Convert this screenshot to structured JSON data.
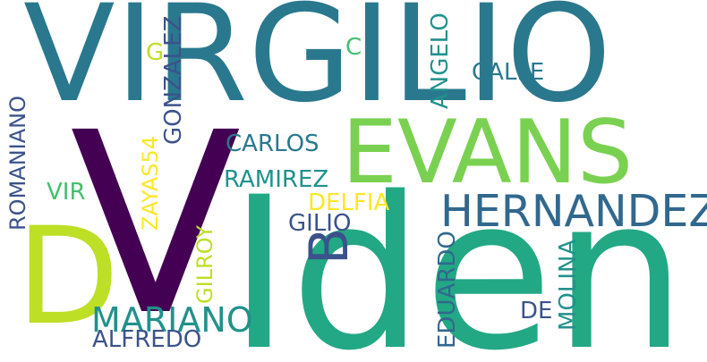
{
  "words": {
    "virgilio": "VIRGILIO",
    "v": "V",
    "iden": "Iden",
    "evans": "EVANS",
    "d": "D",
    "hernandez": "HERNANDEZ",
    "b": "B",
    "mariano": "MARIANO",
    "gonzalez": "GONZALEZ",
    "romaniano": "ROMANIANO",
    "zayas54": "ZAYAS54",
    "gilroy": "GILROY",
    "carlos": "CARLOS",
    "ramirez": "RAMIREZ",
    "delfia": "DELFIA",
    "gilio": "GILIO",
    "eduardo": "EDUARDO",
    "molina": "MOLINA",
    "de": "DE",
    "alfredo": "ALFREDO",
    "angelo": "ANGELO",
    "calle": "CALLE",
    "c": "C",
    "g": "G",
    "vir": "VIR"
  },
  "colors": {
    "dark_purple": "#440154",
    "indigo": "#3b528b",
    "slate_blue": "#31688e",
    "teal": "#2a788e",
    "teal_green": "#21918c",
    "green_teal": "#22a884",
    "sea_green": "#44bf70",
    "light_green": "#7ad151",
    "lime": "#bddf26",
    "yellow": "#fde725"
  }
}
